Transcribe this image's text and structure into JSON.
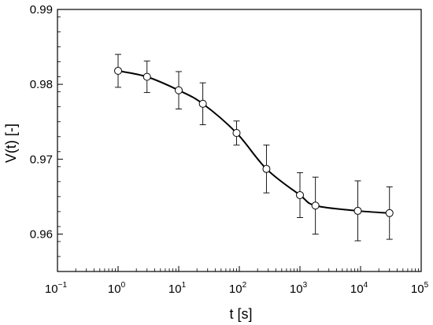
{
  "chart_data": {
    "type": "scatter",
    "xlabel": "t [s]",
    "ylabel": "V(t) [-]",
    "x_scale": "log",
    "xlim": [
      0.1,
      100000
    ],
    "ylim": [
      0.955,
      0.99
    ],
    "y_ticks": [
      "0.96",
      "0.97",
      "0.98",
      "0.99"
    ],
    "x_ticks": [
      {
        "base": "10",
        "exp": "−1"
      },
      {
        "base": "10",
        "exp": "0"
      },
      {
        "base": "10",
        "exp": "1"
      },
      {
        "base": "10",
        "exp": "2"
      },
      {
        "base": "10",
        "exp": "3"
      },
      {
        "base": "10",
        "exp": "4"
      },
      {
        "base": "10",
        "exp": "5"
      }
    ],
    "grid": false,
    "series": [
      {
        "marker": "open-circle",
        "line": "smooth",
        "color": "#000000",
        "x": [
          1,
          3,
          10,
          25,
          90,
          280,
          1000,
          1800,
          9000,
          30000
        ],
        "y": [
          0.9818,
          0.981,
          0.9792,
          0.9774,
          0.9735,
          0.9687,
          0.9652,
          0.9638,
          0.9631,
          0.9628
        ],
        "err": [
          0.0022,
          0.0021,
          0.0025,
          0.0028,
          0.0016,
          0.0032,
          0.003,
          0.0038,
          0.004,
          0.0035
        ]
      }
    ]
  }
}
